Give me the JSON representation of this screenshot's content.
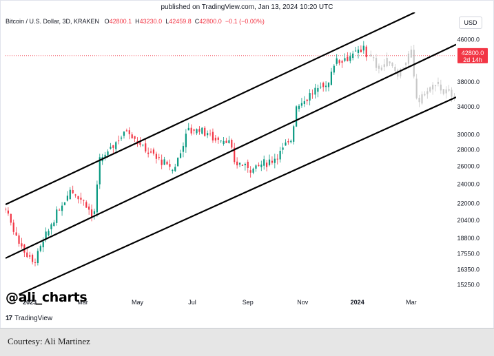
{
  "header": {
    "published": "published on TradingView.com, Jan 13, 2024 10:20 UTC",
    "symbol": "Bitcoin / U.S. Dollar, 3D, KRAKEN",
    "open_label": "O",
    "open": "42800.1",
    "high_label": "H",
    "high": "43230.0",
    "low_label": "L",
    "low": "42459.8",
    "close_label": "C",
    "close": "42800.0",
    "change": "−0.1 (−0.00%)",
    "currency": "USD"
  },
  "price_tag": {
    "price": "42800.0",
    "countdown": "2d 14h",
    "color": "#f23645"
  },
  "watermark": "@ali_charts",
  "logo": {
    "mark": "17",
    "text": "TradingView"
  },
  "footer": {
    "courtesy": "Courtesy: Ali Martinez"
  },
  "colors": {
    "up": "#089981",
    "down": "#f23645",
    "projection": "#c8c8c8",
    "channel": "#000000",
    "price_line": "#f23645"
  },
  "chart_data": {
    "type": "candlestick",
    "y_scale": "log",
    "y_ticks": [
      "46000.0",
      "38000.0",
      "34000.0",
      "30000.0",
      "28000.0",
      "26000.0",
      "24000.0",
      "22000.0",
      "20400.0",
      "18800.0",
      "17550.0",
      "16350.0",
      "15250.0"
    ],
    "x_ticks": [
      "2023",
      "Mar",
      "May",
      "Jul",
      "Sep",
      "Nov",
      "2024",
      "Mar"
    ],
    "x_range": [
      "2022-12-05",
      "2024-04-20"
    ],
    "y_range": [
      14500,
      52000
    ],
    "last_price": 42800,
    "channel_lines": [
      {
        "name": "upper",
        "start": [
          "2022-12-05",
          21900
        ],
        "end": [
          "2024-03-05",
          52000
        ]
      },
      {
        "name": "middle",
        "start": [
          "2022-12-05",
          17200
        ],
        "end": [
          "2024-04-20",
          45000
        ]
      },
      {
        "name": "lower",
        "start": [
          "2022-12-20",
          14600
        ],
        "end": [
          "2024-04-20",
          35500
        ]
      }
    ],
    "price_path": [
      [
        "2022-12-05",
        21500
      ],
      [
        "2022-12-20",
        18500
      ],
      [
        "2023-01-05",
        16800
      ],
      [
        "2023-01-25",
        20000
      ],
      [
        "2023-02-15",
        23500
      ],
      [
        "2023-03-05",
        22000
      ],
      [
        "2023-03-13",
        20400
      ],
      [
        "2023-03-20",
        26500
      ],
      [
        "2023-04-10",
        29500
      ],
      [
        "2023-04-20",
        30800
      ],
      [
        "2023-05-05",
        28500
      ],
      [
        "2023-05-25",
        26800
      ],
      [
        "2023-06-10",
        25500
      ],
      [
        "2023-06-20",
        28500
      ],
      [
        "2023-06-25",
        30500
      ],
      [
        "2023-07-10",
        30800
      ],
      [
        "2023-07-25",
        29500
      ],
      [
        "2023-08-10",
        29300
      ],
      [
        "2023-08-17",
        26500
      ],
      [
        "2023-09-05",
        25800
      ],
      [
        "2023-09-25",
        26500
      ],
      [
        "2023-10-05",
        27500
      ],
      [
        "2023-10-20",
        29500
      ],
      [
        "2023-10-24",
        34000
      ],
      [
        "2023-11-15",
        36500
      ],
      [
        "2023-11-30",
        37800
      ],
      [
        "2023-12-05",
        41500
      ],
      [
        "2023-12-20",
        42500
      ],
      [
        "2024-01-05",
        43500
      ],
      [
        "2024-01-10",
        46200
      ],
      [
        "2024-01-13",
        42800
      ]
    ],
    "projection_path": [
      [
        "2024-01-13",
        42800
      ],
      [
        "2024-01-25",
        40500
      ],
      [
        "2024-02-05",
        41800
      ],
      [
        "2024-02-15",
        39500
      ],
      [
        "2024-02-25",
        42000
      ],
      [
        "2024-03-02",
        43500
      ],
      [
        "2024-03-05",
        36000
      ],
      [
        "2024-03-10",
        35000
      ],
      [
        "2024-03-20",
        36800
      ],
      [
        "2024-03-30",
        37500
      ],
      [
        "2024-04-10",
        36000
      ],
      [
        "2024-04-20",
        35800
      ]
    ]
  }
}
